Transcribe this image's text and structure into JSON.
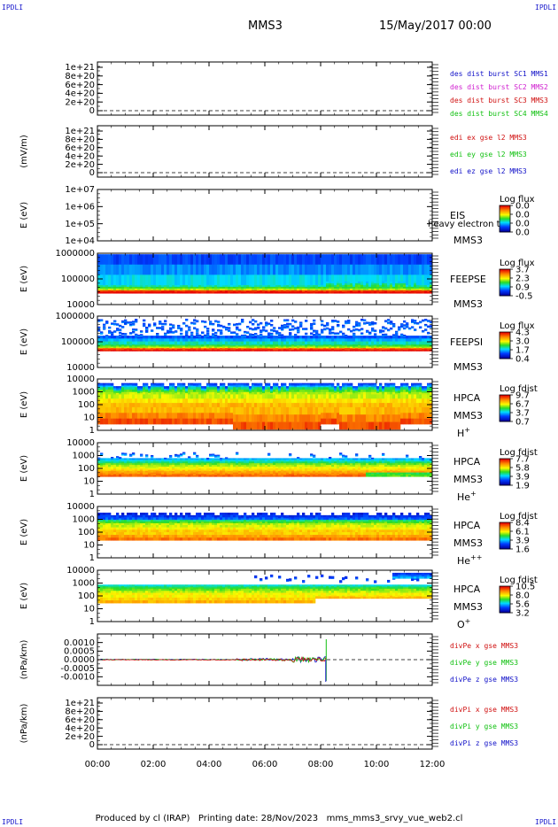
{
  "corner_labels": {
    "top_left": "IPDLI",
    "top_right": "IPDLI",
    "bottom_left": "IPDLI",
    "bottom_right": "IPDLI"
  },
  "header": {
    "spacecraft": "MMS3",
    "date": "15/May/2017 00:00"
  },
  "footer": {
    "text": "Produced by cl (IRAP)   Printing date: 28/Nov/2023   mms_mms3_srvy_vue_web2.cl"
  },
  "chart_data": {
    "type": "stacked-timeseries-spectrograms",
    "x_ticks": [
      "00:00",
      "02:00",
      "04:00",
      "06:00",
      "08:00",
      "10:00",
      "12:00"
    ],
    "x_range_hours": [
      0,
      12
    ],
    "panels": [
      {
        "id": "p1",
        "kind": "line",
        "ylabel": "",
        "yticks": [
          "1e+21",
          "8e+20",
          "6e+20",
          "4e+20",
          "2e+20",
          "0"
        ],
        "dashed_zero": true,
        "legend": [
          {
            "text": "des dist burst SC1 MMS1",
            "color": "#1010c8"
          },
          {
            "text": "des dist burst SC2 MMS2",
            "color": "#d020d0"
          },
          {
            "text": "des dist burst SC3 MMS3",
            "color": "#d01010"
          },
          {
            "text": "des dist burst SC4 MMS4",
            "color": "#10c010"
          }
        ]
      },
      {
        "id": "p2",
        "kind": "line",
        "ylabel": "(mV/m)",
        "yticks": [
          "1e+21",
          "8e+20",
          "6e+20",
          "4e+20",
          "2e+20",
          "0"
        ],
        "dashed_zero": true,
        "legend": [
          {
            "text": "edi ex gse l2 MMS3",
            "color": "#d01010"
          },
          {
            "text": "edi ey gse l2 MMS3",
            "color": "#10c010"
          },
          {
            "text": "edi ez gse l2 MMS3",
            "color": "#1010c8"
          }
        ]
      },
      {
        "id": "p3",
        "kind": "empty-spectrogram",
        "ylabel": "E (eV)",
        "yticks": [
          "1e+07",
          "1e+06",
          "1e+05",
          "1e+04"
        ],
        "side_label": "EIS",
        "side_label2": "MMS3",
        "side_note": "heavy electron to",
        "colorbar": {
          "title": "Log flux",
          "ticks": [
            "0.0",
            "0.0",
            "0.0",
            "0.0"
          ]
        }
      },
      {
        "id": "p4",
        "kind": "spectrogram",
        "variant": "feepse",
        "ylabel": "E (eV)",
        "yticks": [
          "1000000",
          "100000",
          "10000"
        ],
        "side_label": "FEEPSE",
        "side_label2": "MMS3",
        "colorbar": {
          "title": "Log flux",
          "ticks": [
            "3.7",
            "2.3",
            "0.9",
            "-0.5"
          ]
        }
      },
      {
        "id": "p5",
        "kind": "spectrogram",
        "variant": "feepsi",
        "ylabel": "E (eV)",
        "yticks": [
          "1000000",
          "100000",
          "10000"
        ],
        "side_label": "FEEPSI",
        "side_label2": "MMS3",
        "colorbar": {
          "title": "Log flux",
          "ticks": [
            "4.3",
            "3.0",
            "1.7",
            "0.4"
          ]
        }
      },
      {
        "id": "p6",
        "kind": "spectrogram",
        "variant": "hplus",
        "ylabel": "E (eV)",
        "yticks": [
          "10000",
          "1000",
          "100",
          "10",
          "1"
        ],
        "side_label": "HPCA",
        "side_label2": "MMS3",
        "species": "H",
        "species_sup": "+",
        "colorbar": {
          "title": "Log fdist",
          "ticks": [
            "9.7",
            "6.7",
            "3.7",
            "0.7"
          ]
        }
      },
      {
        "id": "p7",
        "kind": "spectrogram",
        "variant": "heplus",
        "ylabel": "E (eV)",
        "yticks": [
          "10000",
          "1000",
          "100",
          "10",
          "1"
        ],
        "side_label": "HPCA",
        "side_label2": "MMS3",
        "species": "He",
        "species_sup": "+",
        "colorbar": {
          "title": "Log fdist",
          "ticks": [
            "7.7",
            "5.8",
            "3.9",
            "1.9"
          ]
        }
      },
      {
        "id": "p8",
        "kind": "spectrogram",
        "variant": "heplusplus",
        "ylabel": "E (eV)",
        "yticks": [
          "10000",
          "1000",
          "100",
          "10",
          "1"
        ],
        "side_label": "HPCA",
        "side_label2": "MMS3",
        "species": "He",
        "species_sup": "++",
        "colorbar": {
          "title": "Log fdist",
          "ticks": [
            "8.4",
            "6.1",
            "3.9",
            "1.6"
          ]
        }
      },
      {
        "id": "p9",
        "kind": "spectrogram",
        "variant": "oplus",
        "ylabel": "E (eV)",
        "yticks": [
          "10000",
          "1000",
          "100",
          "10",
          "1"
        ],
        "side_label": "HPCA",
        "side_label2": "MMS3",
        "species": "O",
        "species_sup": "+",
        "colorbar": {
          "title": "Log fdist",
          "ticks": [
            "10.5",
            "8.0",
            "5.6",
            "3.2"
          ]
        }
      },
      {
        "id": "p10",
        "kind": "line",
        "variant": "divpe",
        "ylabel": "(nPa/km)",
        "yticks": [
          "0.0010",
          "0.0005",
          "0.0000",
          "-0.0005",
          "-0.0010"
        ],
        "ylim": [
          -0.0015,
          0.0015
        ],
        "dashed_zero": true,
        "data_end_hour": 8.2,
        "legend": [
          {
            "text": "divPe x gse MMS3",
            "color": "#d01010"
          },
          {
            "text": "divPe y gse MMS3",
            "color": "#10c010"
          },
          {
            "text": "divPe z gse MMS3",
            "color": "#1010c8"
          }
        ]
      },
      {
        "id": "p11",
        "kind": "line",
        "ylabel": "(nPa/km)",
        "yticks": [
          "1e+21",
          "8e+20",
          "6e+20",
          "4e+20",
          "2e+20",
          "0"
        ],
        "dashed_zero": true,
        "legend": [
          {
            "text": "divPi x gse MMS3",
            "color": "#d01010"
          },
          {
            "text": "divPi y gse MMS3",
            "color": "#10c010"
          },
          {
            "text": "divPi z gse MMS3",
            "color": "#1010c8"
          }
        ]
      }
    ]
  }
}
